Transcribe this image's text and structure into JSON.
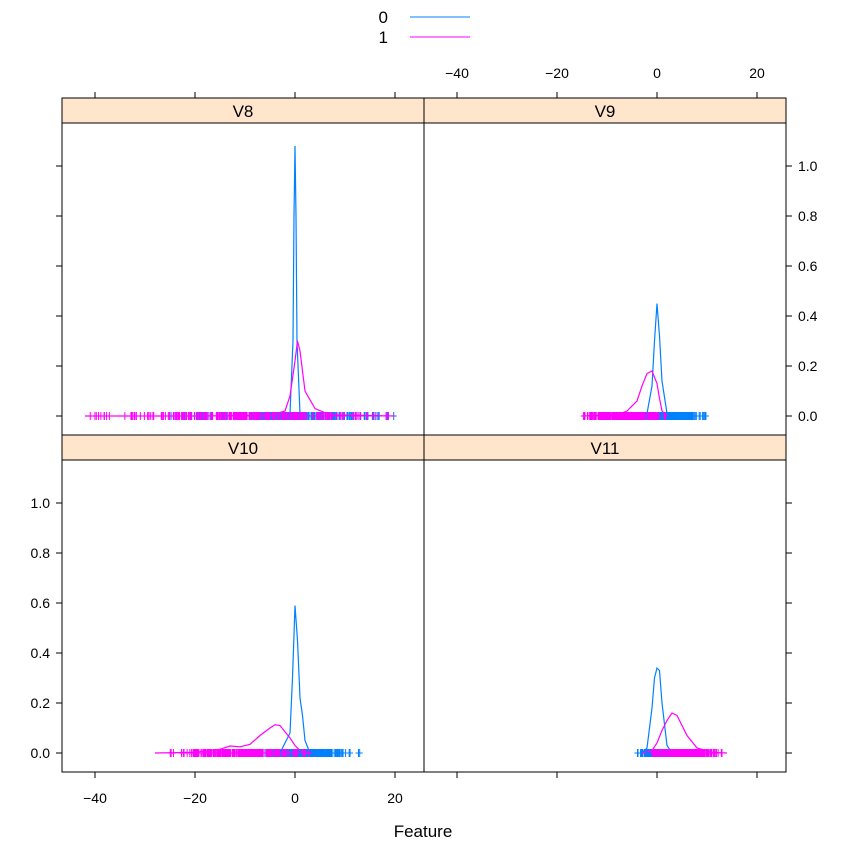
{
  "chart_data": {
    "type": "line",
    "subtype": "lattice density plot with rug",
    "xlabel": "Feature",
    "ylabel": "",
    "xlim": [
      -45,
      25
    ],
    "ylim": [
      -0.05,
      1.15
    ],
    "x_ticks": [
      -40,
      -20,
      0,
      20
    ],
    "y_ticks": [
      0.0,
      0.2,
      0.4,
      0.6,
      0.8,
      1.0
    ],
    "x_tick_labels": [
      "−40",
      "−20",
      "0",
      "20"
    ],
    "y_tick_labels": [
      "0.0",
      "0.2",
      "0.4",
      "0.6",
      "0.8",
      "1.0"
    ],
    "legend": {
      "position": "top",
      "entries": [
        {
          "label": "0",
          "color": "#0080ff"
        },
        {
          "label": "1",
          "color": "#ff00ff"
        }
      ]
    },
    "strip_color": "#ffe5cc",
    "panels": [
      {
        "name": "V8",
        "series": [
          {
            "name": "0",
            "color": "#0080ff",
            "x": [
              -3,
              -1,
              -0.4,
              -0.2,
              0,
              0.2,
              0.4,
              1,
              3
            ],
            "y": [
              0,
              0.01,
              0.3,
              0.8,
              1.08,
              0.8,
              0.3,
              0.01,
              0
            ],
            "rug_range": [
              -25,
              20
            ]
          },
          {
            "name": "1",
            "color": "#ff00ff",
            "x": [
              -42,
              -20,
              -5,
              -2,
              -1,
              0,
              0.5,
              1,
              2,
              4,
              7,
              20
            ],
            "y": [
              0,
              0,
              0.003,
              0.02,
              0.08,
              0.22,
              0.3,
              0.26,
              0.1,
              0.03,
              0.005,
              0
            ],
            "rug_range": [
              -42,
              20
            ]
          }
        ]
      },
      {
        "name": "V9",
        "series": [
          {
            "name": "0",
            "color": "#0080ff",
            "x": [
              -3,
              -2,
              -1,
              -0.5,
              0,
              0.5,
              1,
              2,
              3
            ],
            "y": [
              0,
              0.01,
              0.12,
              0.3,
              0.45,
              0.32,
              0.14,
              0.01,
              0
            ],
            "rug_range": [
              -5,
              10
            ]
          },
          {
            "name": "1",
            "color": "#ff00ff",
            "x": [
              -15,
              -8,
              -6,
              -4,
              -3,
              -2,
              -1,
              0,
              0.5,
              1,
              2
            ],
            "y": [
              0,
              0.005,
              0.02,
              0.06,
              0.12,
              0.17,
              0.18,
              0.13,
              0.07,
              0.02,
              0
            ],
            "rug_range": [
              -15,
              2
            ]
          }
        ]
      },
      {
        "name": "V10",
        "series": [
          {
            "name": "0",
            "color": "#0080ff",
            "x": [
              -3,
              -1,
              -0.5,
              0,
              0.5,
              1,
              1.5,
              2,
              3
            ],
            "y": [
              0,
              0.08,
              0.3,
              0.59,
              0.45,
              0.22,
              0.15,
              0.05,
              0
            ],
            "rug_range": [
              -8,
              13
            ]
          },
          {
            "name": "1",
            "color": "#ff00ff",
            "x": [
              -28,
              -20,
              -15,
              -13,
              -11,
              -9,
              -7,
              -5,
              -4,
              -3,
              -1,
              0,
              1,
              3
            ],
            "y": [
              0,
              0.003,
              0.015,
              0.028,
              0.025,
              0.035,
              0.07,
              0.1,
              0.113,
              0.11,
              0.06,
              0.03,
              0.01,
              0
            ],
            "rug_range": [
              -25,
              3
            ]
          }
        ]
      },
      {
        "name": "V11",
        "series": [
          {
            "name": "0",
            "color": "#0080ff",
            "x": [
              -3,
              -2,
              -1,
              -0.5,
              0,
              0.5,
              1,
              2,
              3
            ],
            "y": [
              0,
              0.02,
              0.18,
              0.3,
              0.34,
              0.33,
              0.2,
              0.03,
              0
            ],
            "rug_range": [
              -4,
              4
            ]
          },
          {
            "name": "1",
            "color": "#ff00ff",
            "x": [
              -3,
              -1,
              0,
              1,
              2,
              3,
              4,
              5,
              6,
              8,
              11,
              14
            ],
            "y": [
              0,
              0.01,
              0.04,
              0.09,
              0.13,
              0.16,
              0.15,
              0.11,
              0.07,
              0.02,
              0.003,
              0
            ],
            "rug_range": [
              -1,
              13
            ]
          }
        ]
      }
    ]
  }
}
